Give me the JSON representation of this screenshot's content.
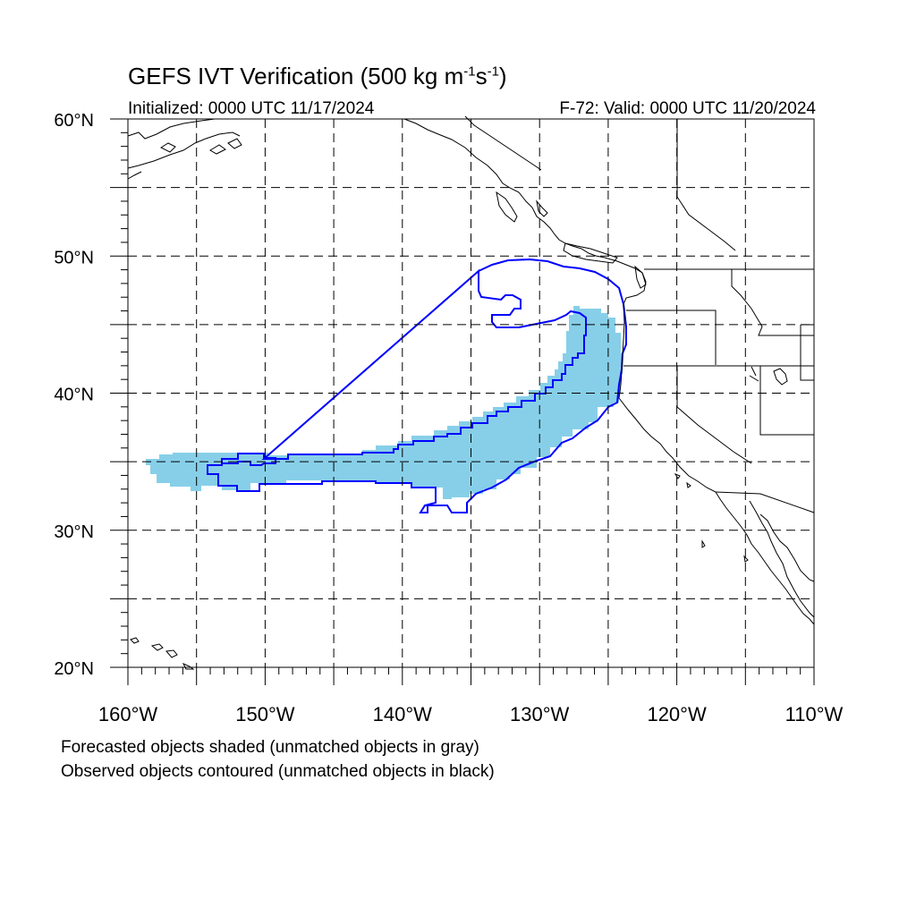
{
  "title": {
    "main": "GEFS IVT Verification (500 kg m",
    "exp1": "-1",
    "mid": "s",
    "exp2": "-1",
    "end": ")"
  },
  "initialized": "Initialized: 0000 UTC 11/17/2024",
  "valid": "F-72: Valid: 0000 UTC 11/20/2024",
  "lat_labels": [
    "60°N",
    "50°N",
    "40°N",
    "30°N",
    "20°N"
  ],
  "lon_labels": [
    "160°W",
    "150°W",
    "140°W",
    "130°W",
    "120°W",
    "110°W"
  ],
  "notes": [
    "Forecasted objects shaded (unmatched objects in gray)",
    "Observed objects contoured (unmatched objects in black)"
  ],
  "colors": {
    "forecast_fill": "#87cfe8",
    "observed_contour": "#0000ff",
    "coastline": "#000000",
    "grid": "#000000"
  },
  "map": {
    "projection": "cylindrical equidistant",
    "lon_range": [
      -160,
      -110
    ],
    "lat_range": [
      20,
      60
    ],
    "grid": "dashed, every 5 degrees"
  }
}
